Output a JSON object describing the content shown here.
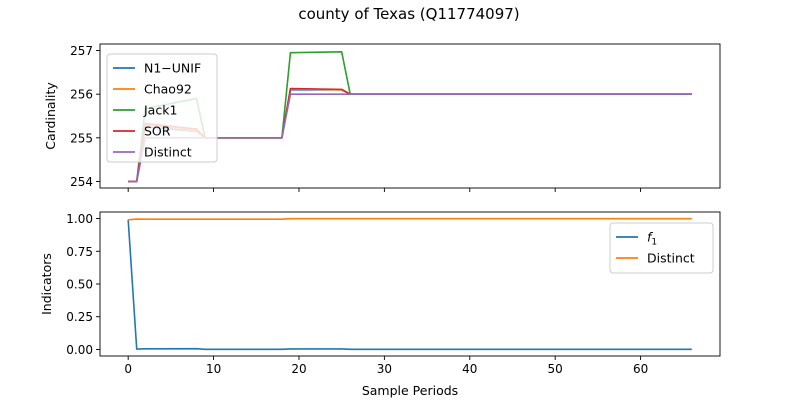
{
  "figure": {
    "title": "county of Texas (Q11774097)"
  },
  "chart_data": [
    {
      "type": "line",
      "ylabel": "Cardinality",
      "xlabel": "",
      "xlim": [
        -3.3,
        69.3
      ],
      "ylim": [
        253.85,
        257.15
      ],
      "x_ticks": [
        0,
        10,
        20,
        30,
        40,
        50,
        60
      ],
      "y_ticks": [
        254,
        255,
        256,
        257
      ],
      "legend_position": "upper left",
      "grid": false,
      "series": [
        {
          "name": "N1−UNIF",
          "color": "#1f77b4",
          "points": [
            [
              0,
              254
            ],
            [
              1,
              254
            ],
            [
              2,
              255.25
            ],
            [
              8,
              255.15
            ],
            [
              9,
              255
            ],
            [
              18,
              255
            ],
            [
              19,
              256.1
            ],
            [
              25,
              256.1
            ],
            [
              26,
              256
            ],
            [
              66,
              256
            ]
          ]
        },
        {
          "name": "Chao92",
          "color": "#ff7f0e",
          "points": [
            [
              0,
              254
            ],
            [
              1,
              254
            ],
            [
              2,
              255.3
            ],
            [
              8,
              255.17
            ],
            [
              9,
              255
            ],
            [
              18,
              255
            ],
            [
              19,
              256.12
            ],
            [
              25,
              256.1
            ],
            [
              26,
              256
            ],
            [
              66,
              256
            ]
          ]
        },
        {
          "name": "Jack1",
          "color": "#2ca02c",
          "points": [
            [
              0,
              254
            ],
            [
              1,
              254
            ],
            [
              2,
              255.67
            ],
            [
              8,
              255.9
            ],
            [
              9,
              255
            ],
            [
              18,
              255
            ],
            [
              19,
              256.95
            ],
            [
              25,
              256.97
            ],
            [
              26,
              256
            ],
            [
              66,
              256
            ]
          ]
        },
        {
          "name": "SOR",
          "color": "#d62728",
          "points": [
            [
              0,
              254
            ],
            [
              1,
              254
            ],
            [
              2,
              255.33
            ],
            [
              8,
              255.2
            ],
            [
              9,
              255
            ],
            [
              18,
              255
            ],
            [
              19,
              256.13
            ],
            [
              25,
              256.11
            ],
            [
              26,
              256
            ],
            [
              66,
              256
            ]
          ]
        },
        {
          "name": "Distinct",
          "color": "#9467bd",
          "points": [
            [
              0,
              254
            ],
            [
              1,
              254
            ],
            [
              2,
              255
            ],
            [
              18,
              255
            ],
            [
              19,
              256
            ],
            [
              66,
              256
            ]
          ]
        }
      ]
    },
    {
      "type": "line",
      "ylabel": "Indicators",
      "xlabel": "Sample Periods",
      "xlim": [
        -3.3,
        69.3
      ],
      "ylim": [
        -0.05,
        1.05
      ],
      "x_ticks": [
        0,
        10,
        20,
        30,
        40,
        50,
        60
      ],
      "x_tick_labels": [
        "0",
        "10",
        "20",
        "30",
        "40",
        "50",
        "60"
      ],
      "y_ticks": [
        0.0,
        0.25,
        0.5,
        0.75,
        1.0
      ],
      "y_tick_labels": [
        "0.00",
        "0.25",
        "0.50",
        "0.75",
        "1.00"
      ],
      "legend_position": "upper right",
      "grid": false,
      "series": [
        {
          "name": "f1",
          "label_base": "f",
          "label_sub": "1",
          "color": "#1f77b4",
          "points": [
            [
              0,
              0.99
            ],
            [
              1,
              0.003
            ],
            [
              2,
              0.005
            ],
            [
              8,
              0.006
            ],
            [
              9,
              0.001
            ],
            [
              18,
              0.001
            ],
            [
              19,
              0.004
            ],
            [
              25,
              0.004
            ],
            [
              26,
              0.001
            ],
            [
              66,
              0.001
            ]
          ]
        },
        {
          "name": "Distinct",
          "color": "#ff7f0e",
          "points": [
            [
              0,
              0.99
            ],
            [
              1,
              0.996
            ],
            [
              2,
              0.995
            ],
            [
              18,
              0.995
            ],
            [
              19,
              0.999
            ],
            [
              66,
              0.999
            ]
          ]
        }
      ]
    }
  ]
}
